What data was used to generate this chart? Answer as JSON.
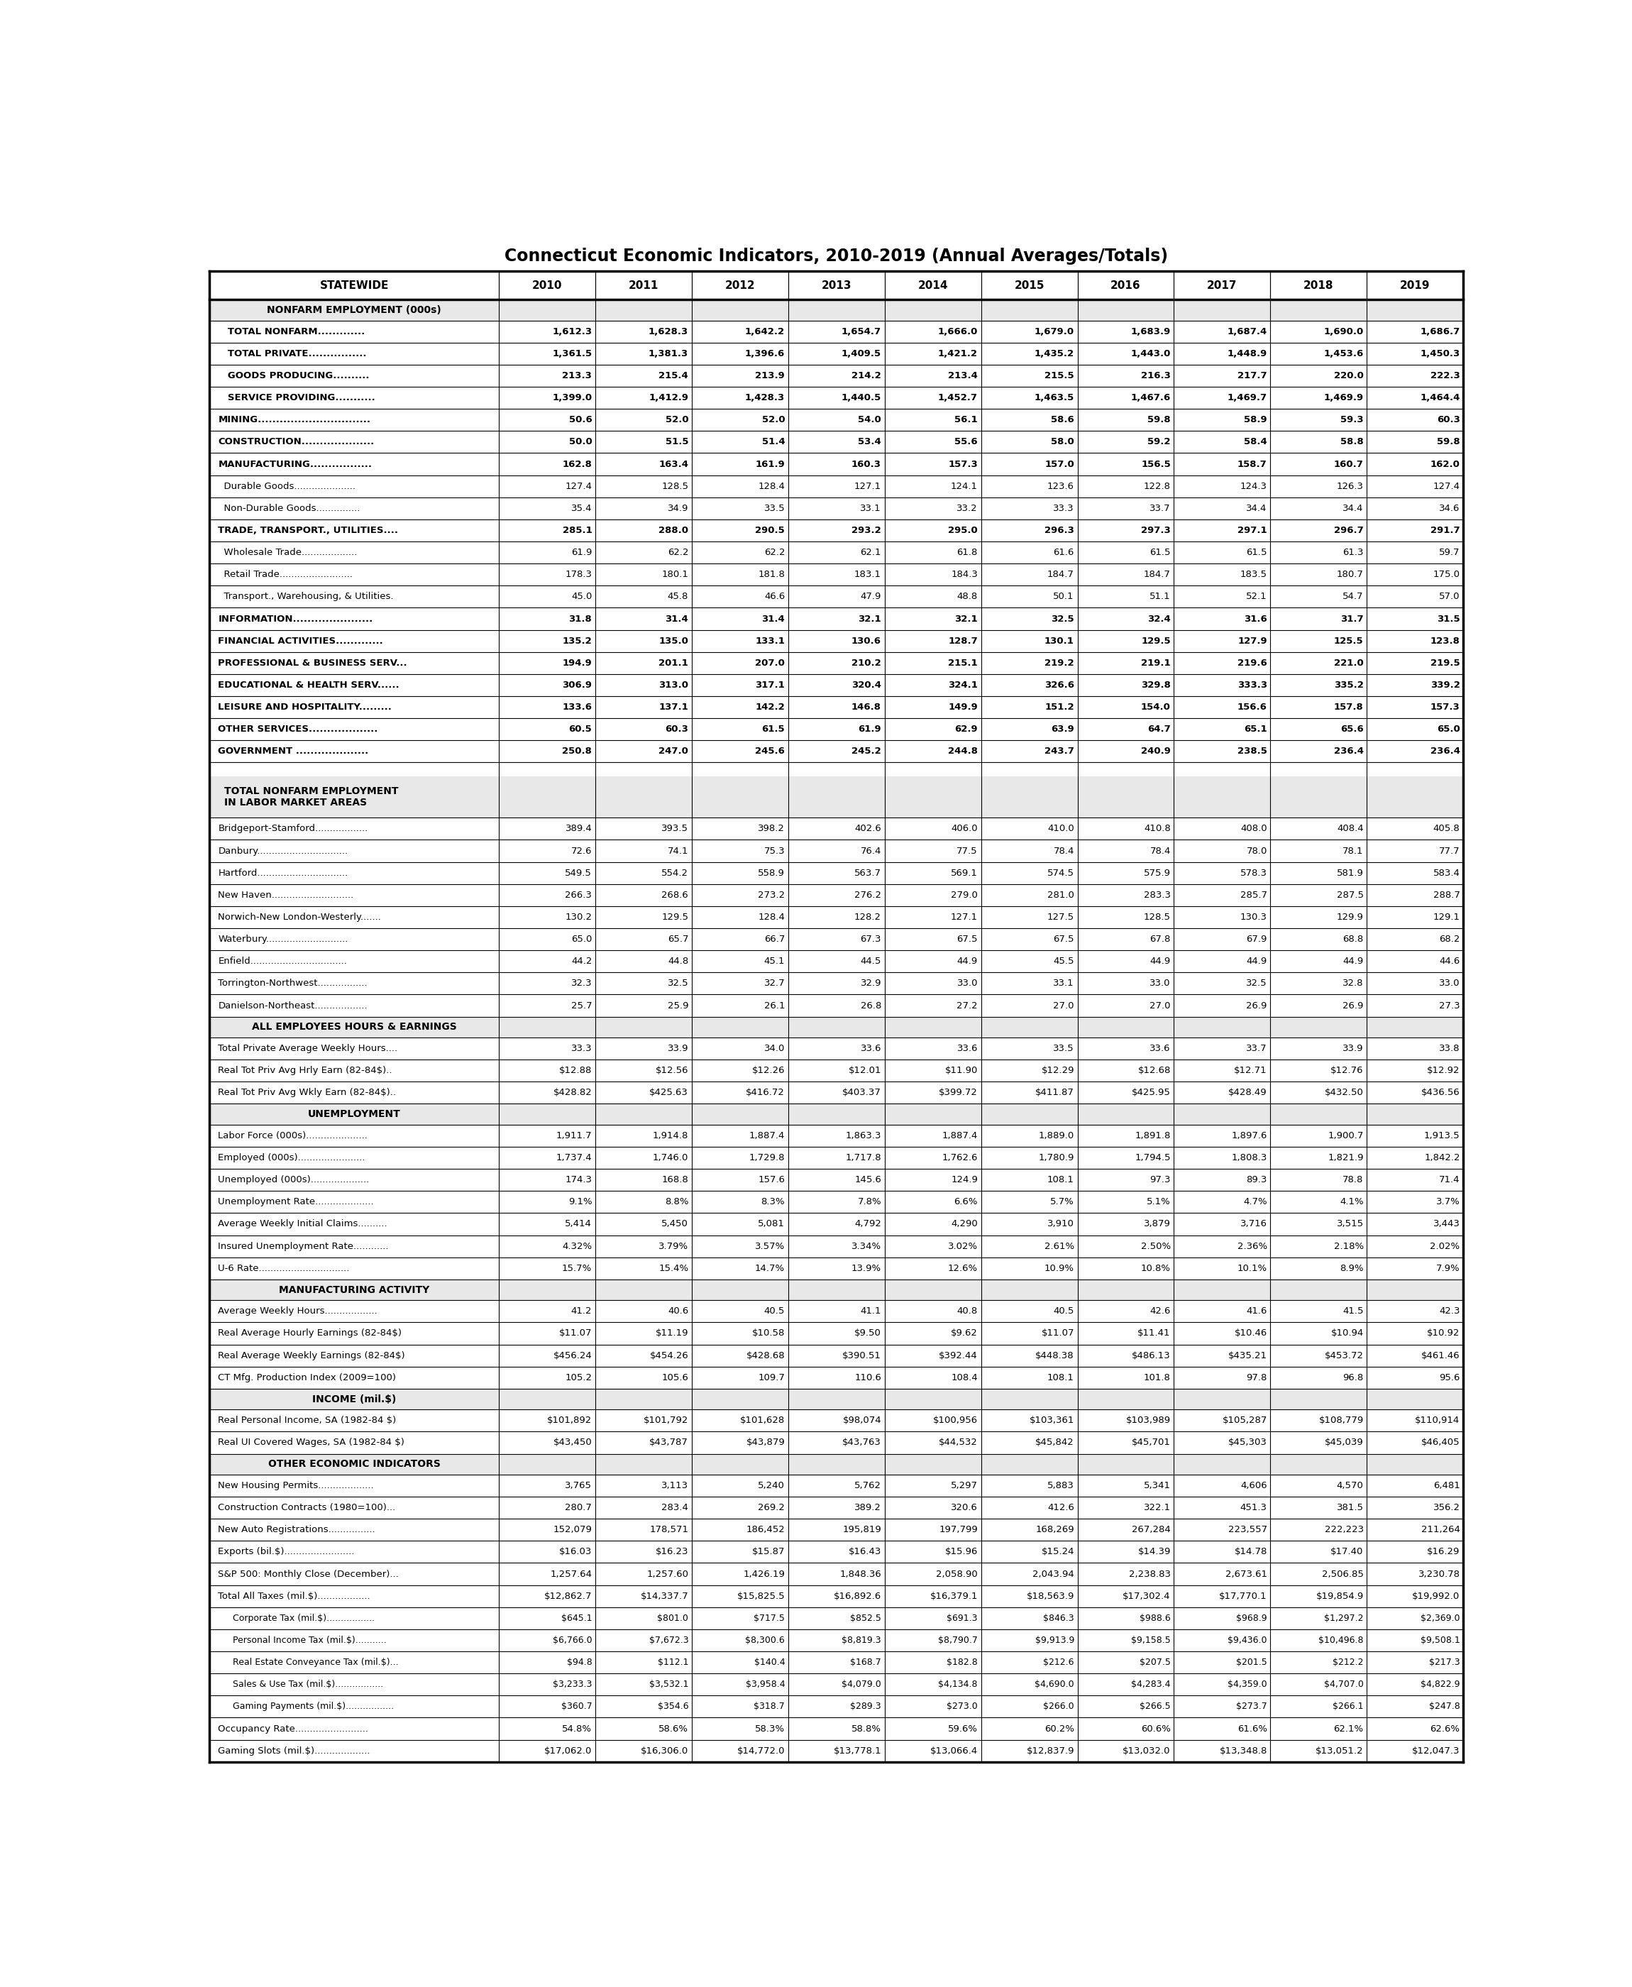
{
  "title": "Connecticut Economic Indicators, 2010-2019 (Annual Averages/Totals)",
  "columns": [
    "STATEWIDE",
    "2010",
    "2011",
    "2012",
    "2013",
    "2014",
    "2015",
    "2016",
    "2017",
    "2018",
    "2019"
  ],
  "col_widths_ratio": [
    3.0,
    1.0,
    1.0,
    1.0,
    1.0,
    1.0,
    1.0,
    1.0,
    1.0,
    1.0,
    1.0
  ],
  "rows": [
    {
      "label": "NONFARM EMPLOYMENT (000s)",
      "type": "section_header",
      "values": []
    },
    {
      "label": "   TOTAL NONFARM.............",
      "type": "data_bold",
      "values": [
        "1,612.3",
        "1,628.3",
        "1,642.2",
        "1,654.7",
        "1,666.0",
        "1,679.0",
        "1,683.9",
        "1,687.4",
        "1,690.0",
        "1,686.7"
      ]
    },
    {
      "label": "   TOTAL PRIVATE................",
      "type": "data_bold",
      "values": [
        "1,361.5",
        "1,381.3",
        "1,396.6",
        "1,409.5",
        "1,421.2",
        "1,435.2",
        "1,443.0",
        "1,448.9",
        "1,453.6",
        "1,450.3"
      ]
    },
    {
      "label": "   GOODS PRODUCING..........",
      "type": "data_bold",
      "values": [
        "213.3",
        "215.4",
        "213.9",
        "214.2",
        "213.4",
        "215.5",
        "216.3",
        "217.7",
        "220.0",
        "222.3"
      ]
    },
    {
      "label": "   SERVICE PROVIDING...........",
      "type": "data_bold",
      "values": [
        "1,399.0",
        "1,412.9",
        "1,428.3",
        "1,440.5",
        "1,452.7",
        "1,463.5",
        "1,467.6",
        "1,469.7",
        "1,469.9",
        "1,464.4"
      ]
    },
    {
      "label": "MINING...............................",
      "type": "data_bold",
      "values": [
        "50.6",
        "52.0",
        "52.0",
        "54.0",
        "56.1",
        "58.6",
        "59.8",
        "58.9",
        "59.3",
        "60.3"
      ]
    },
    {
      "label": "CONSTRUCTION....................",
      "type": "data_bold",
      "values": [
        "50.0",
        "51.5",
        "51.4",
        "53.4",
        "55.6",
        "58.0",
        "59.2",
        "58.4",
        "58.8",
        "59.8"
      ]
    },
    {
      "label": "MANUFACTURING.................",
      "type": "data_bold",
      "values": [
        "162.8",
        "163.4",
        "161.9",
        "160.3",
        "157.3",
        "157.0",
        "156.5",
        "158.7",
        "160.7",
        "162.0"
      ]
    },
    {
      "label": "  Durable Goods.....................",
      "type": "data_normal",
      "values": [
        "127.4",
        "128.5",
        "128.4",
        "127.1",
        "124.1",
        "123.6",
        "122.8",
        "124.3",
        "126.3",
        "127.4"
      ]
    },
    {
      "label": "  Non-Durable Goods...............",
      "type": "data_normal",
      "values": [
        "35.4",
        "34.9",
        "33.5",
        "33.1",
        "33.2",
        "33.3",
        "33.7",
        "34.4",
        "34.4",
        "34.6"
      ]
    },
    {
      "label": "TRADE, TRANSPORT., UTILITIES....",
      "type": "data_bold",
      "values": [
        "285.1",
        "288.0",
        "290.5",
        "293.2",
        "295.0",
        "296.3",
        "297.3",
        "297.1",
        "296.7",
        "291.7"
      ]
    },
    {
      "label": "  Wholesale Trade...................",
      "type": "data_normal",
      "values": [
        "61.9",
        "62.2",
        "62.2",
        "62.1",
        "61.8",
        "61.6",
        "61.5",
        "61.5",
        "61.3",
        "59.7"
      ]
    },
    {
      "label": "  Retail Trade.........................",
      "type": "data_normal",
      "values": [
        "178.3",
        "180.1",
        "181.8",
        "183.1",
        "184.3",
        "184.7",
        "184.7",
        "183.5",
        "180.7",
        "175.0"
      ]
    },
    {
      "label": "  Transport., Warehousing, & Utilities.",
      "type": "data_normal",
      "values": [
        "45.0",
        "45.8",
        "46.6",
        "47.9",
        "48.8",
        "50.1",
        "51.1",
        "52.1",
        "54.7",
        "57.0"
      ]
    },
    {
      "label": "INFORMATION......................",
      "type": "data_bold",
      "values": [
        "31.8",
        "31.4",
        "31.4",
        "32.1",
        "32.1",
        "32.5",
        "32.4",
        "31.6",
        "31.7",
        "31.5"
      ]
    },
    {
      "label": "FINANCIAL ACTIVITIES.............",
      "type": "data_bold",
      "values": [
        "135.2",
        "135.0",
        "133.1",
        "130.6",
        "128.7",
        "130.1",
        "129.5",
        "127.9",
        "125.5",
        "123.8"
      ]
    },
    {
      "label": "PROFESSIONAL & BUSINESS SERV...",
      "type": "data_bold",
      "values": [
        "194.9",
        "201.1",
        "207.0",
        "210.2",
        "215.1",
        "219.2",
        "219.1",
        "219.6",
        "221.0",
        "219.5"
      ]
    },
    {
      "label": "EDUCATIONAL & HEALTH SERV......",
      "type": "data_bold",
      "values": [
        "306.9",
        "313.0",
        "317.1",
        "320.4",
        "324.1",
        "326.6",
        "329.8",
        "333.3",
        "335.2",
        "339.2"
      ]
    },
    {
      "label": "LEISURE AND HOSPITALITY.........",
      "type": "data_bold",
      "values": [
        "133.6",
        "137.1",
        "142.2",
        "146.8",
        "149.9",
        "151.2",
        "154.0",
        "156.6",
        "157.8",
        "157.3"
      ]
    },
    {
      "label": "OTHER SERVICES...................",
      "type": "data_bold",
      "values": [
        "60.5",
        "60.3",
        "61.5",
        "61.9",
        "62.9",
        "63.9",
        "64.7",
        "65.1",
        "65.6",
        "65.0"
      ]
    },
    {
      "label": "GOVERNMENT ....................",
      "type": "data_bold",
      "values": [
        "250.8",
        "247.0",
        "245.6",
        "245.2",
        "244.8",
        "243.7",
        "240.9",
        "238.5",
        "236.4",
        "236.4"
      ]
    },
    {
      "label": "",
      "type": "spacer",
      "values": []
    },
    {
      "label": "  TOTAL NONFARM EMPLOYMENT\n  IN LABOR MARKET AREAS",
      "type": "section_header2",
      "values": []
    },
    {
      "label": "Bridgeport-Stamford..................",
      "type": "data_normal",
      "values": [
        "389.4",
        "393.5",
        "398.2",
        "402.6",
        "406.0",
        "410.0",
        "410.8",
        "408.0",
        "408.4",
        "405.8"
      ]
    },
    {
      "label": "Danbury...............................",
      "type": "data_normal",
      "values": [
        "72.6",
        "74.1",
        "75.3",
        "76.4",
        "77.5",
        "78.4",
        "78.4",
        "78.0",
        "78.1",
        "77.7"
      ]
    },
    {
      "label": "Hartford...............................",
      "type": "data_normal",
      "values": [
        "549.5",
        "554.2",
        "558.9",
        "563.7",
        "569.1",
        "574.5",
        "575.9",
        "578.3",
        "581.9",
        "583.4"
      ]
    },
    {
      "label": "New Haven............................",
      "type": "data_normal",
      "values": [
        "266.3",
        "268.6",
        "273.2",
        "276.2",
        "279.0",
        "281.0",
        "283.3",
        "285.7",
        "287.5",
        "288.7"
      ]
    },
    {
      "label": "Norwich-New London-Westerly.......",
      "type": "data_normal",
      "values": [
        "130.2",
        "129.5",
        "128.4",
        "128.2",
        "127.1",
        "127.5",
        "128.5",
        "130.3",
        "129.9",
        "129.1"
      ]
    },
    {
      "label": "Waterbury............................",
      "type": "data_normal",
      "values": [
        "65.0",
        "65.7",
        "66.7",
        "67.3",
        "67.5",
        "67.5",
        "67.8",
        "67.9",
        "68.8",
        "68.2"
      ]
    },
    {
      "label": "Enfield.................................",
      "type": "data_normal",
      "values": [
        "44.2",
        "44.8",
        "45.1",
        "44.5",
        "44.9",
        "45.5",
        "44.9",
        "44.9",
        "44.9",
        "44.6"
      ]
    },
    {
      "label": "Torrington-Northwest.................",
      "type": "data_normal",
      "values": [
        "32.3",
        "32.5",
        "32.7",
        "32.9",
        "33.0",
        "33.1",
        "33.0",
        "32.5",
        "32.8",
        "33.0"
      ]
    },
    {
      "label": "Danielson-Northeast..................",
      "type": "data_normal",
      "values": [
        "25.7",
        "25.9",
        "26.1",
        "26.8",
        "27.2",
        "27.0",
        "27.0",
        "26.9",
        "26.9",
        "27.3"
      ]
    },
    {
      "label": "ALL EMPLOYEES HOURS & EARNINGS",
      "type": "section_header",
      "values": []
    },
    {
      "label": "Total Private Average Weekly Hours....",
      "type": "data_normal",
      "values": [
        "33.3",
        "33.9",
        "34.0",
        "33.6",
        "33.6",
        "33.5",
        "33.6",
        "33.7",
        "33.9",
        "33.8"
      ]
    },
    {
      "label": "Real Tot Priv Avg Hrly Earn (82-84$)..",
      "type": "data_normal",
      "values": [
        "$12.88",
        "$12.56",
        "$12.26",
        "$12.01",
        "$11.90",
        "$12.29",
        "$12.68",
        "$12.71",
        "$12.76",
        "$12.92"
      ]
    },
    {
      "label": "Real Tot Priv Avg Wkly Earn (82-84$)..",
      "type": "data_normal",
      "values": [
        "$428.82",
        "$425.63",
        "$416.72",
        "$403.37",
        "$399.72",
        "$411.87",
        "$425.95",
        "$428.49",
        "$432.50",
        "$436.56"
      ]
    },
    {
      "label": "UNEMPLOYMENT",
      "type": "section_header",
      "values": []
    },
    {
      "label": "Labor Force (000s).....................",
      "type": "data_normal",
      "values": [
        "1,911.7",
        "1,914.8",
        "1,887.4",
        "1,863.3",
        "1,887.4",
        "1,889.0",
        "1,891.8",
        "1,897.6",
        "1,900.7",
        "1,913.5"
      ]
    },
    {
      "label": "Employed (000s).......................",
      "type": "data_normal",
      "values": [
        "1,737.4",
        "1,746.0",
        "1,729.8",
        "1,717.8",
        "1,762.6",
        "1,780.9",
        "1,794.5",
        "1,808.3",
        "1,821.9",
        "1,842.2"
      ]
    },
    {
      "label": "Unemployed (000s)....................",
      "type": "data_normal",
      "values": [
        "174.3",
        "168.8",
        "157.6",
        "145.6",
        "124.9",
        "108.1",
        "97.3",
        "89.3",
        "78.8",
        "71.4"
      ]
    },
    {
      "label": "Unemployment Rate....................",
      "type": "data_normal",
      "values": [
        "9.1%",
        "8.8%",
        "8.3%",
        "7.8%",
        "6.6%",
        "5.7%",
        "5.1%",
        "4.7%",
        "4.1%",
        "3.7%"
      ]
    },
    {
      "label": "Average Weekly Initial Claims..........",
      "type": "data_normal",
      "values": [
        "5,414",
        "5,450",
        "5,081",
        "4,792",
        "4,290",
        "3,910",
        "3,879",
        "3,716",
        "3,515",
        "3,443"
      ]
    },
    {
      "label": "Insured Unemployment Rate............",
      "type": "data_normal",
      "values": [
        "4.32%",
        "3.79%",
        "3.57%",
        "3.34%",
        "3.02%",
        "2.61%",
        "2.50%",
        "2.36%",
        "2.18%",
        "2.02%"
      ]
    },
    {
      "label": "U-6 Rate...............................",
      "type": "data_normal",
      "values": [
        "15.7%",
        "15.4%",
        "14.7%",
        "13.9%",
        "12.6%",
        "10.9%",
        "10.8%",
        "10.1%",
        "8.9%",
        "7.9%"
      ]
    },
    {
      "label": "MANUFACTURING ACTIVITY",
      "type": "section_header",
      "values": []
    },
    {
      "label": "Average Weekly Hours..................",
      "type": "data_normal",
      "values": [
        "41.2",
        "40.6",
        "40.5",
        "41.1",
        "40.8",
        "40.5",
        "42.6",
        "41.6",
        "41.5",
        "42.3"
      ]
    },
    {
      "label": "Real Average Hourly Earnings (82-84$)",
      "type": "data_normal",
      "values": [
        "$11.07",
        "$11.19",
        "$10.58",
        "$9.50",
        "$9.62",
        "$11.07",
        "$11.41",
        "$10.46",
        "$10.94",
        "$10.92"
      ]
    },
    {
      "label": "Real Average Weekly Earnings (82-84$)",
      "type": "data_normal",
      "values": [
        "$456.24",
        "$454.26",
        "$428.68",
        "$390.51",
        "$392.44",
        "$448.38",
        "$486.13",
        "$435.21",
        "$453.72",
        "$461.46"
      ]
    },
    {
      "label": "CT Mfg. Production Index (2009=100)",
      "type": "data_normal",
      "values": [
        "105.2",
        "105.6",
        "109.7",
        "110.6",
        "108.4",
        "108.1",
        "101.8",
        "97.8",
        "96.8",
        "95.6"
      ]
    },
    {
      "label": "INCOME (mil.$)",
      "type": "section_header",
      "values": []
    },
    {
      "label": "Real Personal Income, SA (1982-84 $)",
      "type": "data_normal",
      "values": [
        "$101,892",
        "$101,792",
        "$101,628",
        "$98,074",
        "$100,956",
        "$103,361",
        "$103,989",
        "$105,287",
        "$108,779",
        "$110,914"
      ]
    },
    {
      "label": "Real UI Covered Wages, SA (1982-84 $)",
      "type": "data_normal",
      "values": [
        "$43,450",
        "$43,787",
        "$43,879",
        "$43,763",
        "$44,532",
        "$45,842",
        "$45,701",
        "$45,303",
        "$45,039",
        "$46,405"
      ]
    },
    {
      "label": "OTHER ECONOMIC INDICATORS",
      "type": "section_header",
      "values": []
    },
    {
      "label": "New Housing Permits...................",
      "type": "data_normal",
      "values": [
        "3,765",
        "3,113",
        "5,240",
        "5,762",
        "5,297",
        "5,883",
        "5,341",
        "4,606",
        "4,570",
        "6,481"
      ]
    },
    {
      "label": "Construction Contracts (1980=100)...",
      "type": "data_normal",
      "values": [
        "280.7",
        "283.4",
        "269.2",
        "389.2",
        "320.6",
        "412.6",
        "322.1",
        "451.3",
        "381.5",
        "356.2"
      ]
    },
    {
      "label": "New Auto Registrations................",
      "type": "data_normal",
      "values": [
        "152,079",
        "178,571",
        "186,452",
        "195,819",
        "197,799",
        "168,269",
        "267,284",
        "223,557",
        "222,223",
        "211,264"
      ]
    },
    {
      "label": "Exports (bil.$)........................",
      "type": "data_normal",
      "values": [
        "$16.03",
        "$16.23",
        "$15.87",
        "$16.43",
        "$15.96",
        "$15.24",
        "$14.39",
        "$14.78",
        "$17.40",
        "$16.29"
      ]
    },
    {
      "label": "S&P 500: Monthly Close (December)...",
      "type": "data_normal",
      "values": [
        "1,257.64",
        "1,257.60",
        "1,426.19",
        "1,848.36",
        "2,058.90",
        "2,043.94",
        "2,238.83",
        "2,673.61",
        "2,506.85",
        "3,230.78"
      ]
    },
    {
      "label": "Total All Taxes (mil.$)..................",
      "type": "data_normal",
      "values": [
        "$12,862.7",
        "$14,337.7",
        "$15,825.5",
        "$16,892.6",
        "$16,379.1",
        "$18,563.9",
        "$17,302.4",
        "$17,770.1",
        "$19,854.9",
        "$19,992.0"
      ]
    },
    {
      "label": "  Corporate Tax (mil.$).................",
      "type": "data_indent",
      "values": [
        "$645.1",
        "$801.0",
        "$717.5",
        "$852.5",
        "$691.3",
        "$846.3",
        "$988.6",
        "$968.9",
        "$1,297.2",
        "$2,369.0"
      ]
    },
    {
      "label": "  Personal Income Tax (mil.$)...........",
      "type": "data_indent",
      "values": [
        "$6,766.0",
        "$7,672.3",
        "$8,300.6",
        "$8,819.3",
        "$8,790.7",
        "$9,913.9",
        "$9,158.5",
        "$9,436.0",
        "$10,496.8",
        "$9,508.1"
      ]
    },
    {
      "label": "  Real Estate Conveyance Tax (mil.$)...",
      "type": "data_indent",
      "values": [
        "$94.8",
        "$112.1",
        "$140.4",
        "$168.7",
        "$182.8",
        "$212.6",
        "$207.5",
        "$201.5",
        "$212.2",
        "$217.3"
      ]
    },
    {
      "label": "  Sales & Use Tax (mil.$).................",
      "type": "data_indent",
      "values": [
        "$3,233.3",
        "$3,532.1",
        "$3,958.4",
        "$4,079.0",
        "$4,134.8",
        "$4,690.0",
        "$4,283.4",
        "$4,359.0",
        "$4,707.0",
        "$4,822.9"
      ]
    },
    {
      "label": "  Gaming Payments (mil.$).................",
      "type": "data_indent",
      "values": [
        "$360.7",
        "$354.6",
        "$318.7",
        "$289.3",
        "$273.0",
        "$266.0",
        "$266.5",
        "$273.7",
        "$266.1",
        "$247.8"
      ]
    },
    {
      "label": "Occupancy Rate.........................",
      "type": "data_normal",
      "values": [
        "54.8%",
        "58.6%",
        "58.3%",
        "58.8%",
        "59.6%",
        "60.2%",
        "60.6%",
        "61.6%",
        "62.1%",
        "62.6%"
      ]
    },
    {
      "label": "Gaming Slots (mil.$)...................",
      "type": "data_normal",
      "values": [
        "$17,062.0",
        "$16,306.0",
        "$14,772.0",
        "$13,778.1",
        "$13,066.4",
        "$12,837.9",
        "$13,032.0",
        "$13,348.8",
        "$13,051.2",
        "$12,047.3"
      ]
    }
  ],
  "title_fontsize": 17,
  "header_fontsize": 11,
  "data_fontsize": 9.5,
  "section_fontsize": 10,
  "bg_color": "#ffffff",
  "section_bg": "#e8e8e8",
  "header_bg": "#ffffff",
  "border_color": "#000000",
  "thick_lw": 2.5,
  "thin_lw": 0.8
}
